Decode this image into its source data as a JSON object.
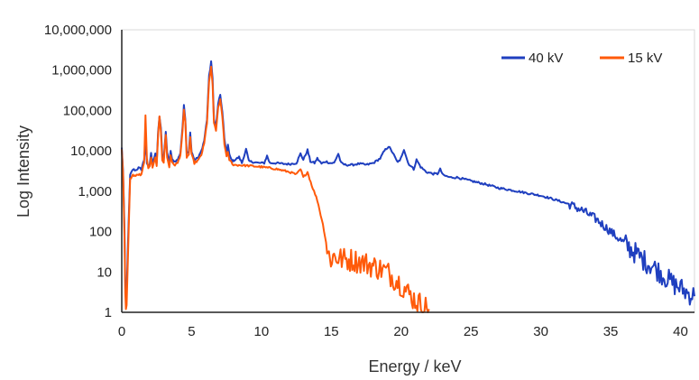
{
  "chart_data": {
    "type": "line",
    "title": "",
    "xlabel": "Energy / keV",
    "ylabel": "Log Intensity",
    "xlim": [
      0,
      41
    ],
    "ylim": [
      1,
      10000000
    ],
    "y_scale": "log",
    "x_ticks": [
      "0",
      "5",
      "10",
      "15",
      "20",
      "25",
      "30",
      "35",
      "40"
    ],
    "x_tick_values": [
      0,
      5,
      10,
      15,
      20,
      25,
      30,
      35,
      40
    ],
    "y_ticks": [
      "1",
      "10",
      "100",
      "1,000",
      "10,000",
      "100,000",
      "1,000,000",
      "10,000,000"
    ],
    "y_tick_values": [
      1,
      10,
      100,
      1000,
      10000,
      100000,
      1000000,
      10000000
    ],
    "grid": false,
    "legend_position": "top-right",
    "series": [
      {
        "name": "40 kV",
        "color": "#1f3fbf",
        "points": [
          [
            0.0,
            12000
          ],
          [
            0.1,
            3000
          ],
          [
            0.2,
            100
          ],
          [
            0.25,
            4
          ],
          [
            0.3,
            2
          ],
          [
            0.35,
            3
          ],
          [
            0.45,
            60
          ],
          [
            0.6,
            2500
          ],
          [
            0.8,
            3500
          ],
          [
            1.0,
            3300
          ],
          [
            1.2,
            3800
          ],
          [
            1.4,
            3500
          ],
          [
            1.6,
            6000
          ],
          [
            1.7,
            20000
          ],
          [
            1.8,
            5000
          ],
          [
            1.9,
            4000
          ],
          [
            2.0,
            4500
          ],
          [
            2.1,
            9000
          ],
          [
            2.2,
            4500
          ],
          [
            2.4,
            9000
          ],
          [
            2.5,
            5000
          ],
          [
            2.6,
            30000
          ],
          [
            2.7,
            70000
          ],
          [
            2.8,
            35000
          ],
          [
            2.9,
            8000
          ],
          [
            3.0,
            6000
          ],
          [
            3.15,
            30000
          ],
          [
            3.25,
            9000
          ],
          [
            3.4,
            5000
          ],
          [
            3.5,
            10000
          ],
          [
            3.6,
            6000
          ],
          [
            3.8,
            5500
          ],
          [
            4.0,
            6000
          ],
          [
            4.2,
            9000
          ],
          [
            4.35,
            40000
          ],
          [
            4.45,
            130000
          ],
          [
            4.55,
            60000
          ],
          [
            4.65,
            9000
          ],
          [
            4.8,
            10000
          ],
          [
            4.9,
            28000
          ],
          [
            5.0,
            10000
          ],
          [
            5.2,
            6000
          ],
          [
            5.5,
            7000
          ],
          [
            5.7,
            10000
          ],
          [
            5.9,
            18000
          ],
          [
            6.1,
            60000
          ],
          [
            6.25,
            700000
          ],
          [
            6.4,
            1650000
          ],
          [
            6.5,
            600000
          ],
          [
            6.6,
            60000
          ],
          [
            6.75,
            40000
          ],
          [
            6.9,
            150000
          ],
          [
            7.05,
            240000
          ],
          [
            7.2,
            90000
          ],
          [
            7.35,
            20000
          ],
          [
            7.5,
            9000
          ],
          [
            7.6,
            14000
          ],
          [
            7.7,
            8000
          ],
          [
            7.9,
            5500
          ],
          [
            8.1,
            6000
          ],
          [
            8.4,
            7000
          ],
          [
            8.6,
            5000
          ],
          [
            8.9,
            11000
          ],
          [
            9.1,
            5500
          ],
          [
            9.4,
            5300
          ],
          [
            9.8,
            5000
          ],
          [
            10.2,
            5000
          ],
          [
            10.4,
            7500
          ],
          [
            10.6,
            5000
          ],
          [
            11.0,
            5000
          ],
          [
            11.5,
            4800
          ],
          [
            12.0,
            4700
          ],
          [
            12.5,
            5000
          ],
          [
            12.8,
            8500
          ],
          [
            13.0,
            6000
          ],
          [
            13.3,
            10500
          ],
          [
            13.5,
            5500
          ],
          [
            13.8,
            5000
          ],
          [
            14.0,
            6500
          ],
          [
            14.3,
            4800
          ],
          [
            14.6,
            5500
          ],
          [
            14.9,
            5000
          ],
          [
            15.2,
            5000
          ],
          [
            15.5,
            8500
          ],
          [
            15.7,
            5000
          ],
          [
            16.0,
            4500
          ],
          [
            16.5,
            4500
          ],
          [
            17.0,
            4800
          ],
          [
            17.5,
            4500
          ],
          [
            18.0,
            5000
          ],
          [
            18.5,
            6500
          ],
          [
            18.8,
            10000
          ],
          [
            19.1,
            13000
          ],
          [
            19.4,
            9000
          ],
          [
            19.7,
            5500
          ],
          [
            19.9,
            5500
          ],
          [
            20.2,
            11000
          ],
          [
            20.5,
            5000
          ],
          [
            20.9,
            3500
          ],
          [
            21.1,
            6000
          ],
          [
            21.4,
            4000
          ],
          [
            21.8,
            3000
          ],
          [
            22.3,
            2700
          ],
          [
            22.6,
            2700
          ],
          [
            22.8,
            3500
          ],
          [
            23.0,
            2500
          ],
          [
            23.5,
            2200
          ],
          [
            24.0,
            2200
          ],
          [
            25.0,
            1800
          ],
          [
            26.0,
            1500
          ],
          [
            27.0,
            1200
          ],
          [
            28.0,
            1050
          ],
          [
            29.0,
            900
          ],
          [
            30.0,
            780
          ],
          [
            31.0,
            620
          ],
          [
            32.0,
            480
          ],
          [
            33.0,
            330
          ],
          [
            34.0,
            200
          ],
          [
            35.0,
            100
          ],
          [
            36.0,
            50
          ],
          [
            37.0,
            25
          ],
          [
            37.5,
            18
          ],
          [
            38.0,
            14
          ],
          [
            38.5,
            10
          ],
          [
            39.0,
            7
          ],
          [
            39.5,
            5
          ],
          [
            40.0,
            4
          ],
          [
            40.5,
            3
          ],
          [
            41.0,
            2.5
          ]
        ]
      },
      {
        "name": "15 kV",
        "color": "#ff5a0a",
        "points": [
          [
            0.0,
            11000
          ],
          [
            0.1,
            2500
          ],
          [
            0.2,
            60
          ],
          [
            0.25,
            3
          ],
          [
            0.3,
            1.2
          ],
          [
            0.35,
            1.5
          ],
          [
            0.45,
            30
          ],
          [
            0.6,
            2000
          ],
          [
            0.8,
            2500
          ],
          [
            1.0,
            2400
          ],
          [
            1.2,
            2600
          ],
          [
            1.4,
            2500
          ],
          [
            1.6,
            5000
          ],
          [
            1.7,
            80000
          ],
          [
            1.8,
            6000
          ],
          [
            1.9,
            3500
          ],
          [
            2.0,
            4000
          ],
          [
            2.1,
            7000
          ],
          [
            2.2,
            4000
          ],
          [
            2.4,
            7000
          ],
          [
            2.5,
            4000
          ],
          [
            2.6,
            25000
          ],
          [
            2.7,
            70000
          ],
          [
            2.8,
            30000
          ],
          [
            2.9,
            6000
          ],
          [
            3.0,
            5000
          ],
          [
            3.15,
            25000
          ],
          [
            3.25,
            7000
          ],
          [
            3.4,
            4000
          ],
          [
            3.5,
            8000
          ],
          [
            3.6,
            5000
          ],
          [
            3.8,
            4500
          ],
          [
            4.0,
            5000
          ],
          [
            4.2,
            8000
          ],
          [
            4.35,
            30000
          ],
          [
            4.45,
            100000
          ],
          [
            4.55,
            50000
          ],
          [
            4.65,
            7000
          ],
          [
            4.8,
            8000
          ],
          [
            4.9,
            22000
          ],
          [
            5.0,
            8000
          ],
          [
            5.2,
            5000
          ],
          [
            5.5,
            6000
          ],
          [
            5.7,
            8000
          ],
          [
            5.9,
            15000
          ],
          [
            6.1,
            50000
          ],
          [
            6.25,
            500000
          ],
          [
            6.4,
            1200000
          ],
          [
            6.5,
            450000
          ],
          [
            6.6,
            50000
          ],
          [
            6.75,
            30000
          ],
          [
            6.9,
            120000
          ],
          [
            7.05,
            180000
          ],
          [
            7.2,
            70000
          ],
          [
            7.35,
            15000
          ],
          [
            7.5,
            7000
          ],
          [
            7.6,
            9000
          ],
          [
            7.7,
            6000
          ],
          [
            8.0,
            4500
          ],
          [
            9.0,
            4300
          ],
          [
            10.0,
            4000
          ],
          [
            11.0,
            3600
          ],
          [
            12.0,
            3000
          ],
          [
            12.5,
            2600
          ],
          [
            12.8,
            3500
          ],
          [
            13.0,
            2200
          ],
          [
            13.3,
            3000
          ],
          [
            13.6,
            1400
          ],
          [
            14.0,
            600
          ],
          [
            14.4,
            150
          ],
          [
            14.7,
            40
          ],
          [
            14.9,
            20
          ],
          [
            15.2,
            25
          ],
          [
            15.5,
            22
          ],
          [
            16.0,
            20
          ],
          [
            16.5,
            20
          ],
          [
            17.0,
            18
          ],
          [
            17.5,
            16
          ],
          [
            18.0,
            14
          ],
          [
            18.5,
            12
          ],
          [
            19.0,
            10
          ],
          [
            19.5,
            7
          ],
          [
            20.0,
            5
          ],
          [
            20.5,
            3
          ],
          [
            21.0,
            2
          ],
          [
            21.5,
            1.5
          ],
          [
            22.0,
            1.2
          ]
        ]
      }
    ]
  }
}
